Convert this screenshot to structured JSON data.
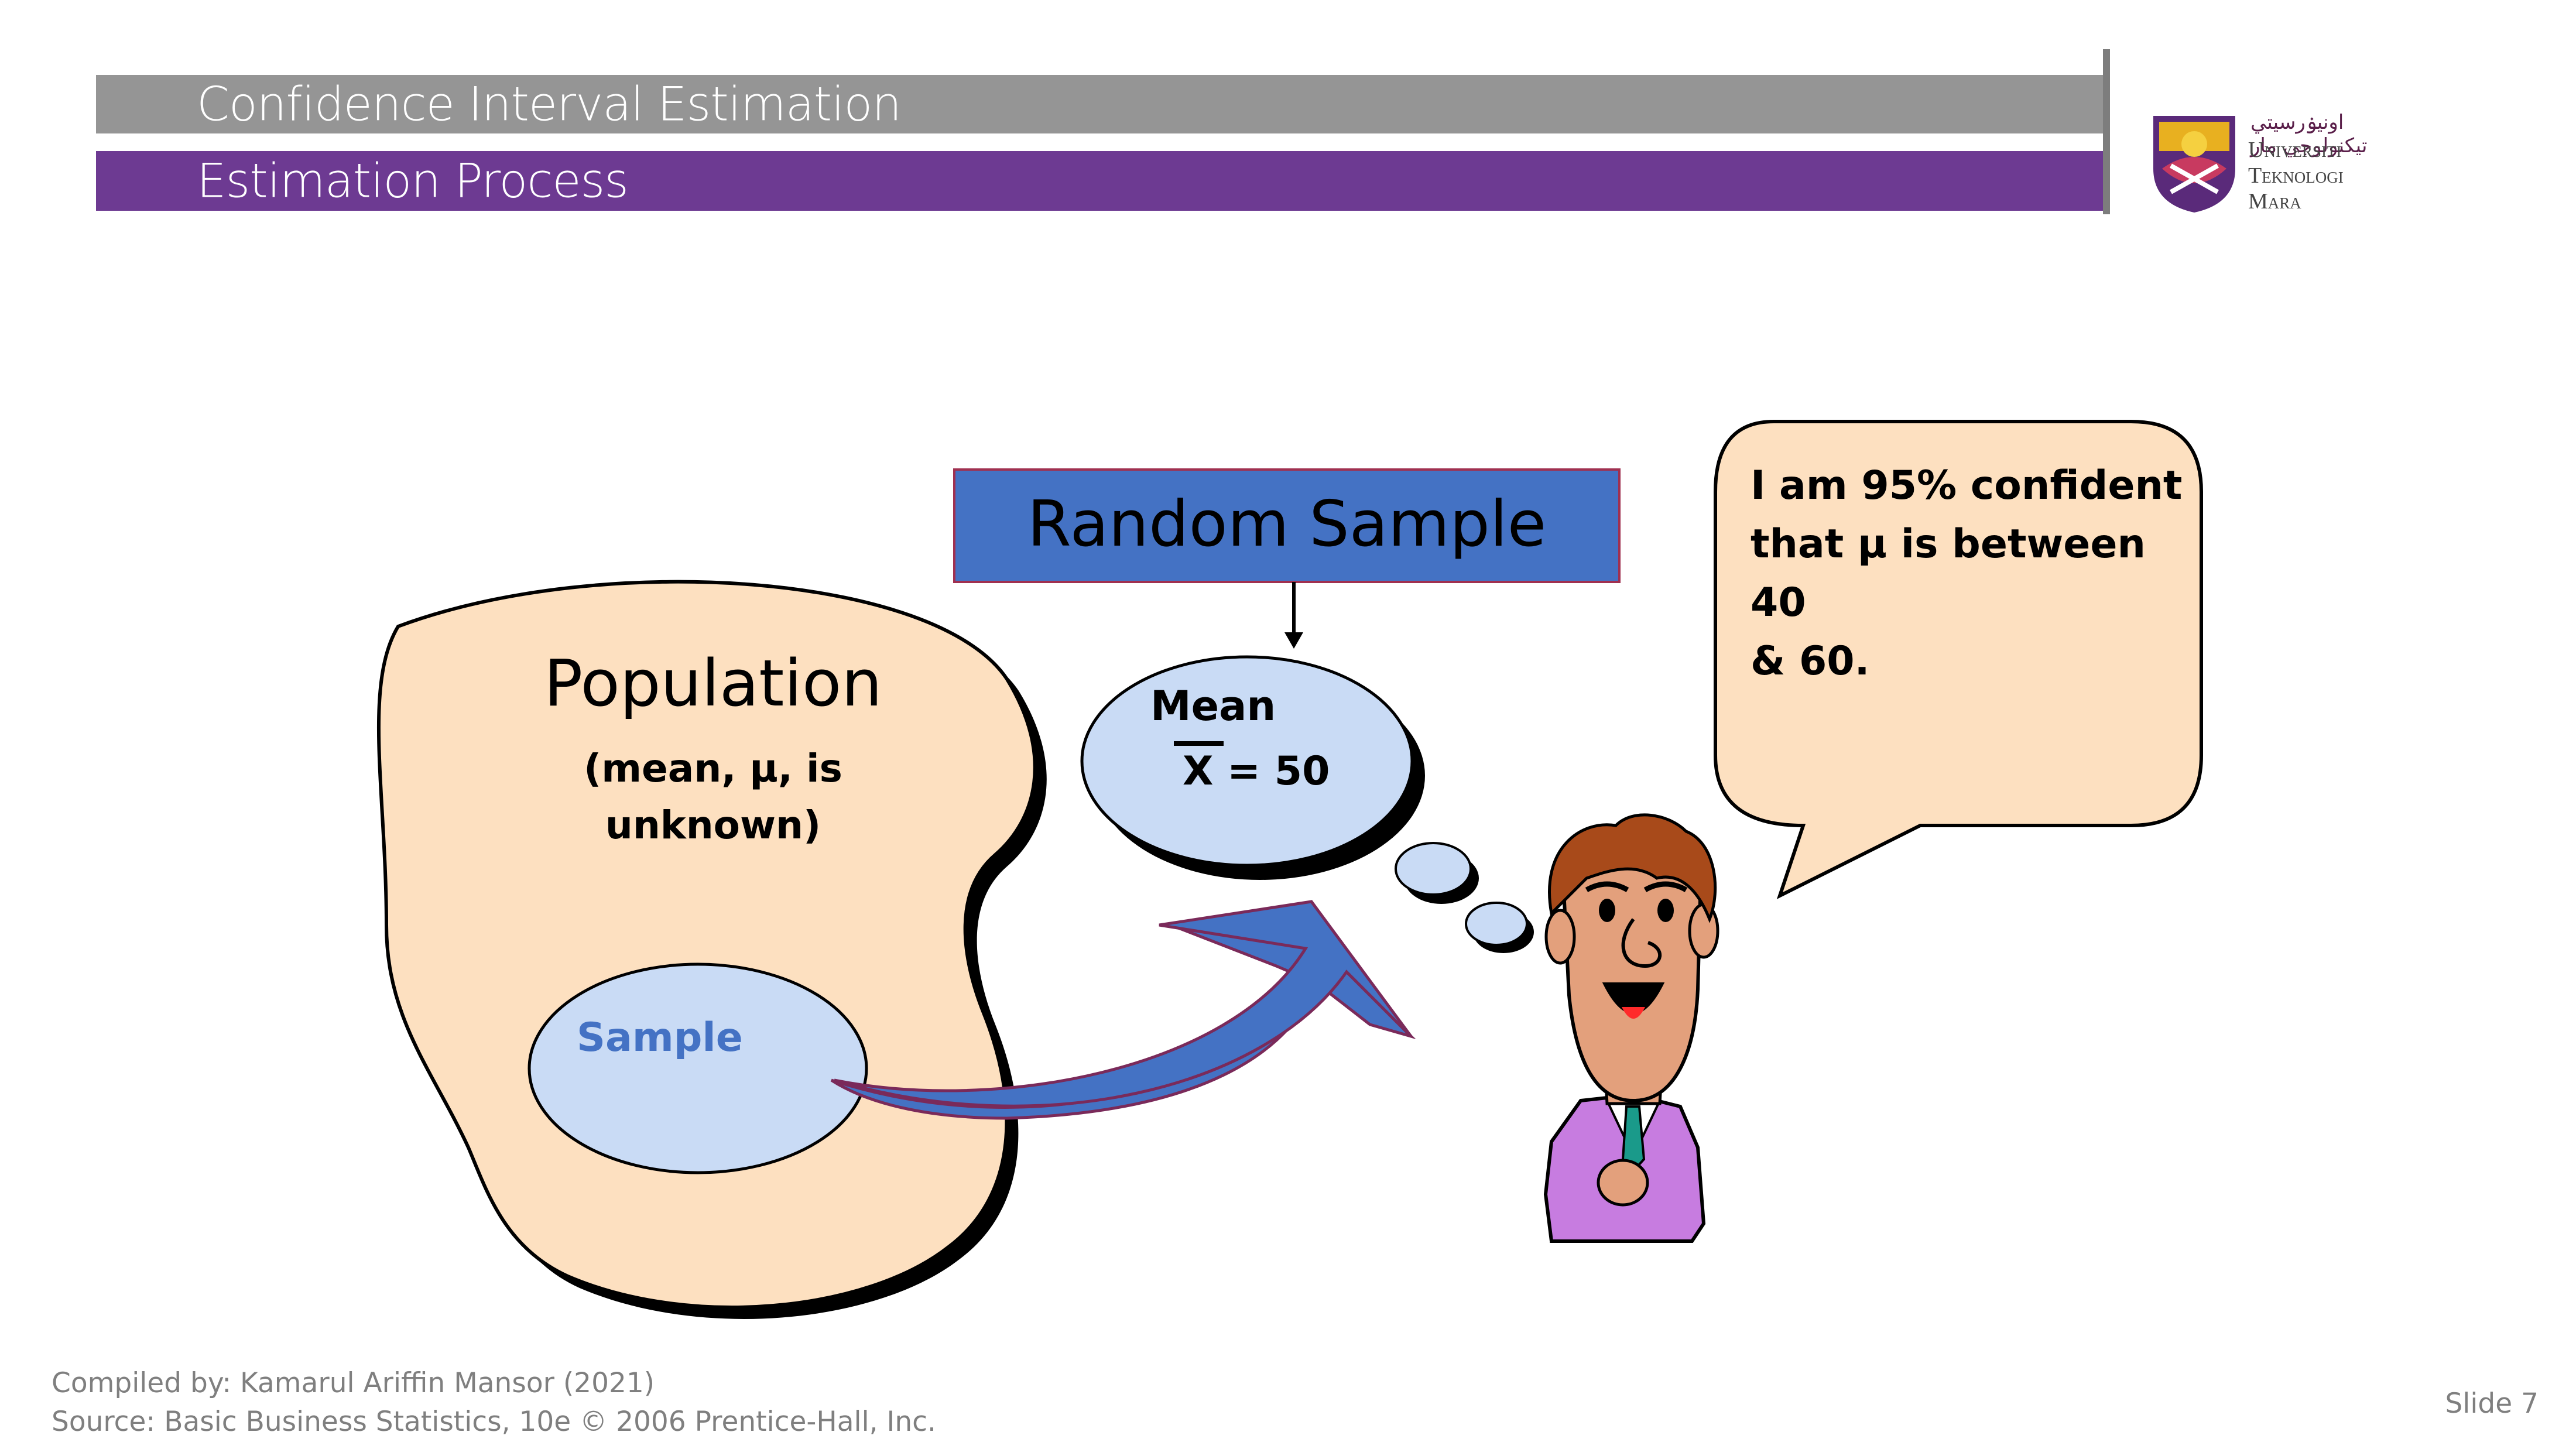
{
  "header": {
    "title": "Confidence Interval Estimation",
    "subtitle": "Estimation Process"
  },
  "logo": {
    "arabic_text": "اونيۏرسيتي تيكنولوجي مار",
    "line1": "Universiti",
    "line2": "Teknologi",
    "line3": "Mara"
  },
  "diagram": {
    "random_sample_label": "Random Sample",
    "population_title": "Population",
    "population_note_line1": "(mean, μ, is",
    "population_note_line2": "unknown)",
    "sample_label": "Sample",
    "mean_label": "Mean",
    "mean_value": "X = 50",
    "speech_line1": "I am 95% confident",
    "speech_line2": "that μ is between 40",
    "speech_line3": "& 60."
  },
  "footer": {
    "compiled_by": "Compiled by: Kamarul Ariffin Mansor (2021)",
    "source": "Source: Basic Business Statistics, 10e © 2006 Prentice-Hall, Inc.",
    "slide_number": "Slide 7"
  },
  "colors": {
    "band_gray": "#959595",
    "band_purple": "#6d3a92",
    "population_fill": "#fde0c0",
    "sample_fill": "#c9dbf5",
    "box_blue": "#4472c4",
    "speech_fill": "#fde0c0",
    "suit": "#c77ce0"
  }
}
